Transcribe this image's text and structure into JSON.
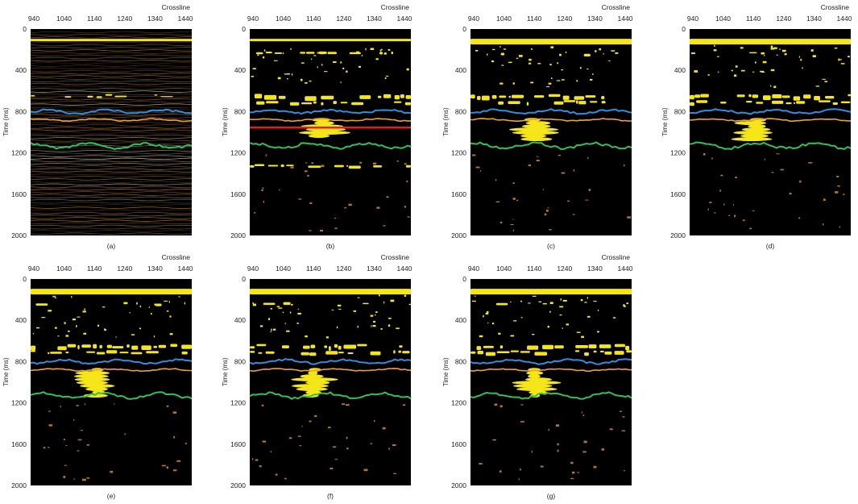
{
  "axis": {
    "x_label": "Crossline",
    "y_label": "Time (ms)",
    "x_ticks": [
      "940",
      "1040",
      "1140",
      "1240",
      "1340",
      "1440"
    ],
    "y_ticks": [
      "0",
      "400",
      "800",
      "1200",
      "1600",
      "2000"
    ]
  },
  "colors": {
    "background": "#000000",
    "high_amplitude": "#f5e619",
    "horizon_blue": "#2e8fe0",
    "horizon_orange": "#f0a030",
    "horizon_green": "#2fc25a",
    "marker_red": "#e02020",
    "seismic_trace": "#c77a2a"
  },
  "panels": [
    {
      "id": "a",
      "caption": "(a)"
    },
    {
      "id": "b",
      "caption": "(b)"
    },
    {
      "id": "c",
      "caption": "(c)"
    },
    {
      "id": "d",
      "caption": "(d)"
    },
    {
      "id": "e",
      "caption": "(e)"
    },
    {
      "id": "f",
      "caption": "(f)"
    },
    {
      "id": "g",
      "caption": "(g)"
    }
  ]
}
